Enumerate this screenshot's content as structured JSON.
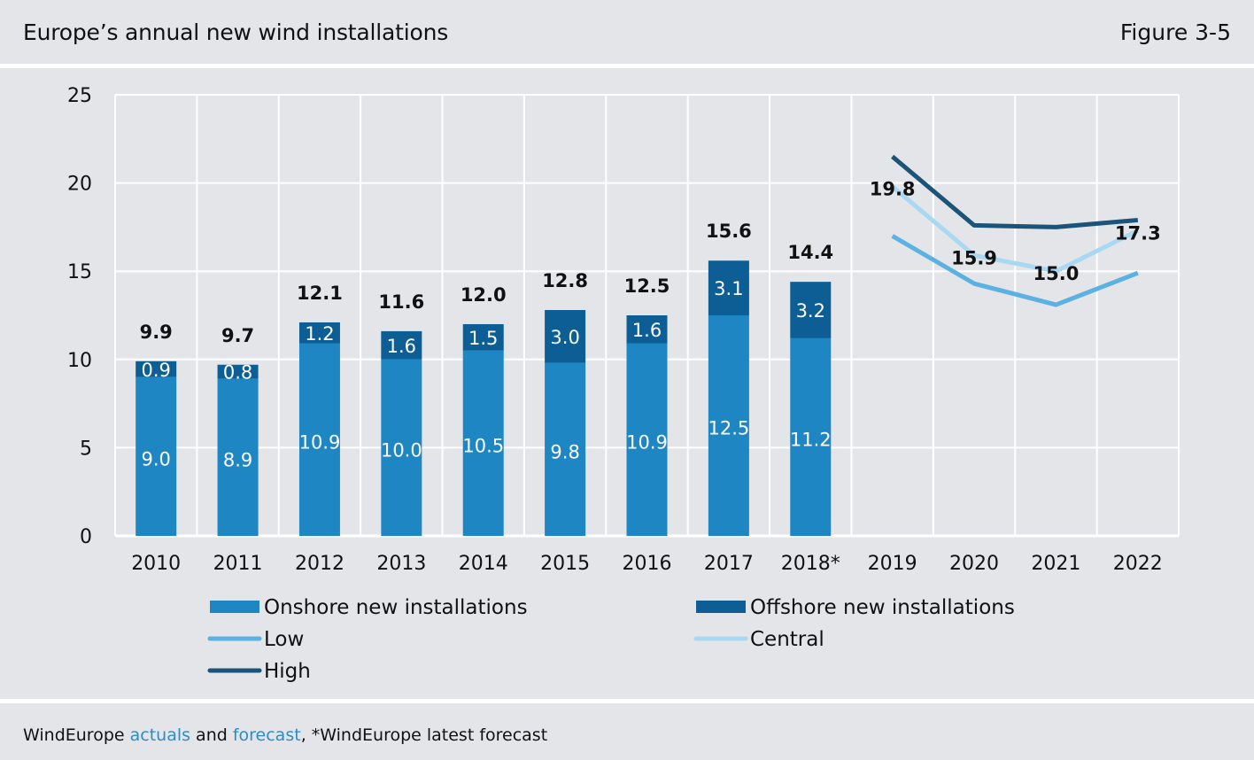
{
  "header": {
    "title": "Europe’s annual new wind installations",
    "figure": "Figure 3-5"
  },
  "footer": {
    "source_prefix": "WindEurope ",
    "source_link1": "actuals",
    "source_mid": " and ",
    "source_link2": "forecast",
    "source_suffix": ", *WindEurope latest forecast"
  },
  "colors": {
    "background": "#e4e5e9",
    "onshore": "#1f86c4",
    "offshore": "#0d5e94",
    "low": "#5bb1e1",
    "central": "#a9d8f2",
    "high": "#1b5379",
    "grid": "#ffffff",
    "link": "#2b8cc8"
  },
  "chart_data": {
    "type": "bar",
    "stacked": true,
    "categories": [
      "2010",
      "2011",
      "2012",
      "2013",
      "2014",
      "2015",
      "2016",
      "2017",
      "2018*",
      "2019",
      "2020",
      "2021",
      "2022"
    ],
    "ylim": [
      0,
      25
    ],
    "yticks": [
      0,
      5,
      10,
      15,
      20,
      25
    ],
    "grid": true,
    "series": [
      {
        "name": "Onshore new installations",
        "kind": "bar",
        "values": [
          9.0,
          8.9,
          10.9,
          10.0,
          10.5,
          9.8,
          10.9,
          12.5,
          11.2,
          null,
          null,
          null,
          null
        ],
        "labels": [
          "9.0",
          "8.9",
          "10.9",
          "10.0",
          "10.5",
          "9.8",
          "10.9",
          "12.5",
          "11.2",
          "",
          "",
          "",
          ""
        ]
      },
      {
        "name": "Offshore new installations",
        "kind": "bar",
        "values": [
          0.9,
          0.8,
          1.2,
          1.6,
          1.5,
          3.0,
          1.6,
          3.1,
          3.2,
          null,
          null,
          null,
          null
        ],
        "labels": [
          "0.9",
          "0.8",
          "1.2",
          "1.6",
          "1.5",
          "3.0",
          "1.6",
          "3.1",
          "3.2",
          "",
          "",
          "",
          ""
        ]
      },
      {
        "name": "Low",
        "kind": "line",
        "values": [
          null,
          null,
          null,
          null,
          null,
          null,
          null,
          null,
          null,
          17.0,
          14.3,
          13.1,
          14.9
        ]
      },
      {
        "name": "Central",
        "kind": "line",
        "values": [
          null,
          null,
          null,
          null,
          null,
          null,
          null,
          null,
          null,
          19.8,
          15.9,
          15.0,
          17.3
        ],
        "labels": [
          "",
          "",
          "",
          "",
          "",
          "",
          "",
          "",
          "",
          "19.8",
          "15.9",
          "15.0",
          "17.3"
        ]
      },
      {
        "name": "High",
        "kind": "line",
        "values": [
          null,
          null,
          null,
          null,
          null,
          null,
          null,
          null,
          null,
          21.5,
          17.6,
          17.5,
          17.9
        ]
      }
    ],
    "totals": [
      "9.9",
      "9.7",
      "12.1",
      "11.6",
      "12.0",
      "12.8",
      "12.5",
      "15.6",
      "14.4",
      "",
      "",
      "",
      ""
    ],
    "legend": [
      {
        "label": "Onshore new installations",
        "swatch": "bar",
        "color_key": "onshore"
      },
      {
        "label": "Offshore new installations",
        "swatch": "bar",
        "color_key": "offshore"
      },
      {
        "label": "Low",
        "swatch": "line",
        "color_key": "low"
      },
      {
        "label": "Central",
        "swatch": "line",
        "color_key": "central"
      },
      {
        "label": "High",
        "swatch": "line",
        "color_key": "high"
      }
    ],
    "legend_position": "bottom"
  }
}
